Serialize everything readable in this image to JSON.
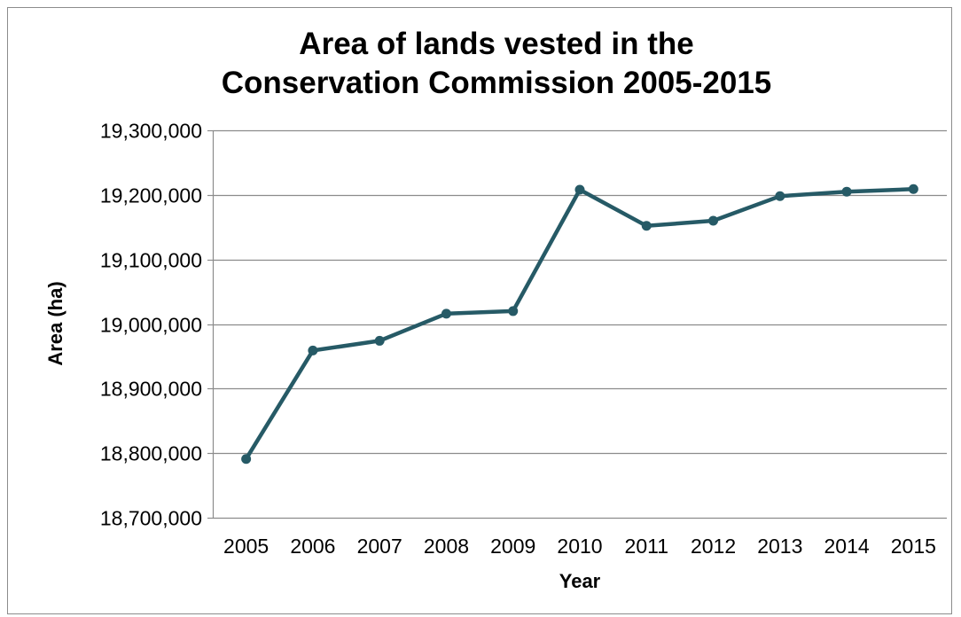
{
  "chart_data": {
    "type": "line",
    "title_lines": [
      "Area of lands vested in the",
      "Conservation Commission 2005-2015"
    ],
    "xlabel": "Year",
    "ylabel": "Area (ha)",
    "ylim": [
      18700000,
      19300000
    ],
    "ytick_values": [
      18700000,
      18800000,
      18900000,
      19000000,
      19100000,
      19200000,
      19300000
    ],
    "ytick_labels": [
      "18,700,000",
      "18,800,000",
      "18,900,000",
      "19,000,000",
      "19,100,000",
      "19,200,000",
      "19,300,000"
    ],
    "categories": [
      "2005",
      "2006",
      "2007",
      "2008",
      "2009",
      "2010",
      "2011",
      "2012",
      "2013",
      "2014",
      "2015"
    ],
    "series": [
      {
        "values": [
          18791000,
          18959000,
          18974000,
          19016000,
          19020000,
          19208000,
          19152000,
          19160000,
          19198000,
          19205000,
          19209000
        ],
        "color": "#265a66"
      }
    ],
    "grid": true,
    "gridline_color": "#8c8c8c",
    "legend": "none"
  }
}
